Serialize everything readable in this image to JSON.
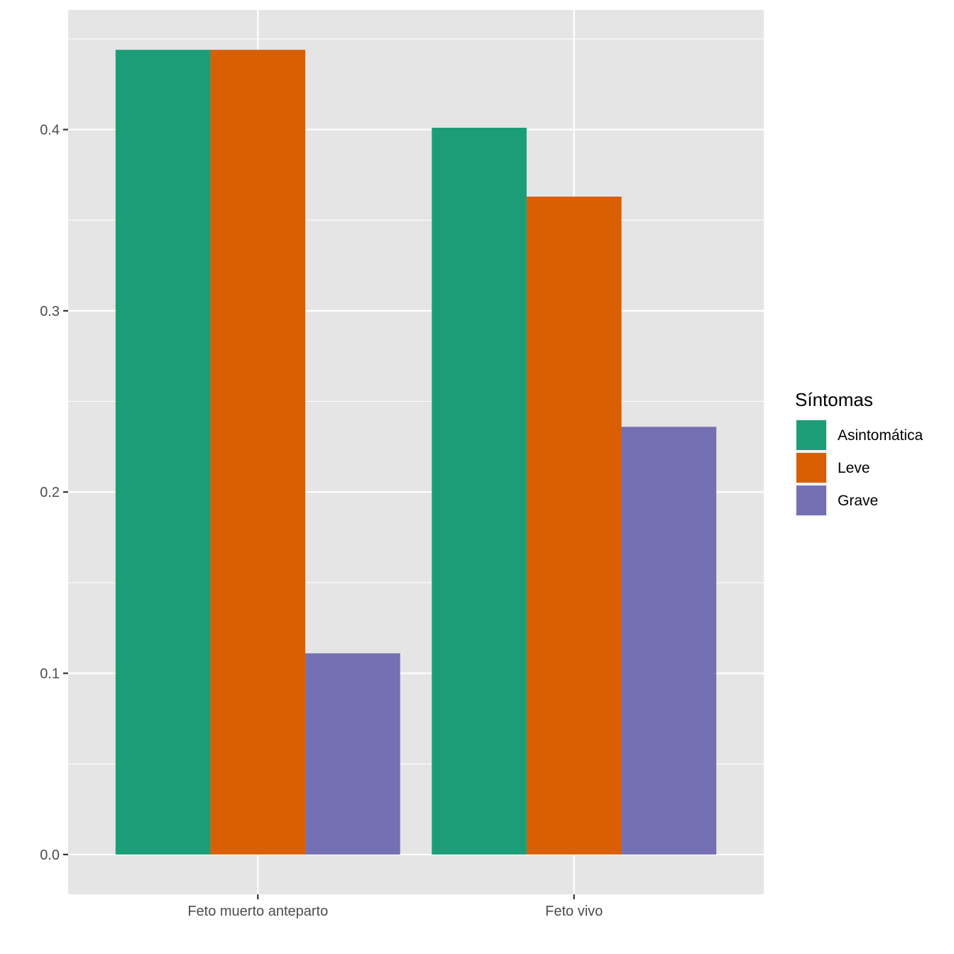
{
  "chart_data": {
    "type": "bar",
    "categories": [
      "Feto muerto anteparto",
      "Feto vivo"
    ],
    "series": [
      {
        "name": "Asintomática",
        "color": "#1b9e77",
        "values": [
          0.444,
          0.401
        ]
      },
      {
        "name": "Leve",
        "color": "#d95f02",
        "values": [
          0.444,
          0.363
        ]
      },
      {
        "name": "Grave",
        "color": "#7570b3",
        "values": [
          0.111,
          0.236
        ]
      }
    ],
    "legend_title": "Síntomas",
    "legend_position": "right",
    "y_ticks": [
      "0.0",
      "0.1",
      "0.2",
      "0.3",
      "0.4"
    ],
    "ylim": [
      -0.022,
      0.466
    ],
    "xlabel": "",
    "ylabel": "",
    "grid": true,
    "panel_background": "#e5e5e5",
    "grid_color": "#ffffff"
  }
}
